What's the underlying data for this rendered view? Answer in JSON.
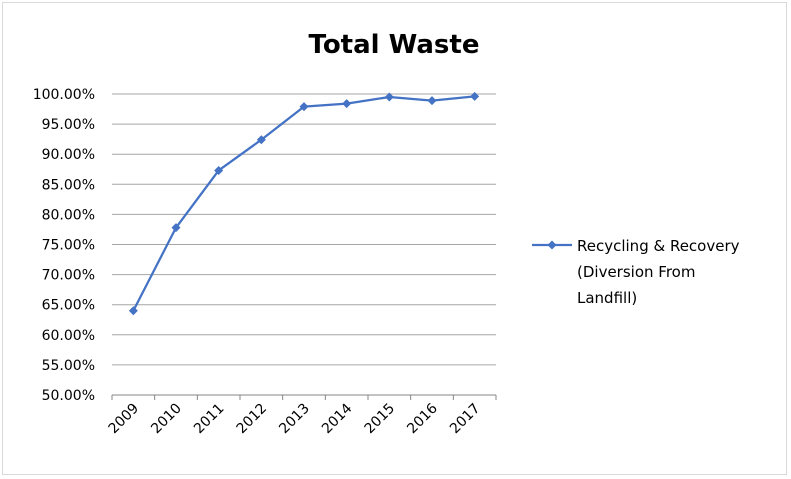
{
  "chart_data": {
    "type": "line",
    "title": "Total Waste",
    "xlabel": "",
    "ylabel": "",
    "categories": [
      "2009",
      "2010",
      "2011",
      "2012",
      "2013",
      "2014",
      "2015",
      "2016",
      "2017"
    ],
    "series": [
      {
        "name": "Recycling & Recovery (Diversion From Landfill)",
        "legend_lines": [
          "Recycling & Recovery",
          "(Diversion From",
          "Landfill)"
        ],
        "values": [
          64.0,
          77.8,
          87.3,
          92.4,
          97.9,
          98.4,
          99.5,
          98.9,
          99.6
        ],
        "color": "#4472c4",
        "marker": "diamond"
      }
    ],
    "ylim": [
      50,
      100
    ],
    "ytick_step": 5,
    "ytick_labels": [
      "50.00%",
      "55.00%",
      "60.00%",
      "65.00%",
      "70.00%",
      "75.00%",
      "80.00%",
      "85.00%",
      "90.00%",
      "95.00%",
      "100.00%"
    ],
    "grid": true,
    "legend_position": "right"
  }
}
